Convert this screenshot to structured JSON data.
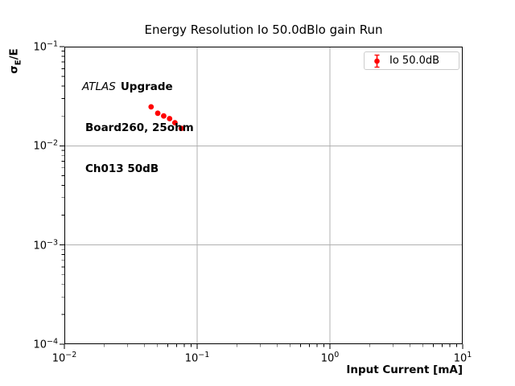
{
  "chart_data": {
    "type": "scatter",
    "title": "Energy Resolution Io 50.0dBlo gain Run",
    "xlabel": "Input Current [mA]",
    "ylabel": "σE/E",
    "x_scale": "log",
    "y_scale": "log",
    "xlim": [
      0.01,
      10
    ],
    "ylim": [
      0.0001,
      0.1
    ],
    "x_tick_exponents": [
      -2,
      -1,
      0,
      1
    ],
    "y_tick_exponents": [
      -1,
      -2,
      -3,
      -4
    ],
    "grid": "major",
    "grid_color": "#b0b0b0",
    "legend_position": "upper right",
    "series": [
      {
        "name": "Io 50.0dB",
        "color": "#ff0000",
        "marker": "circle-errorbar",
        "x": [
          0.045,
          0.0505,
          0.056,
          0.062,
          0.068,
          0.076
        ],
        "y": [
          0.0247,
          0.0213,
          0.02,
          0.0188,
          0.0171,
          0.015
        ]
      }
    ]
  },
  "labels": {
    "ylabel_sigma": "σ",
    "ylabel_sub": "E",
    "ylabel_rest": "/E"
  },
  "legend": {
    "label": "Io 50.0dB",
    "marker_color": "#ff0000"
  },
  "annotation": {
    "line1_italic": "ATLAS",
    "line1_bold": "Upgrade",
    "line2": "Board260, 25ohm",
    "line3": "Ch013 50dB"
  }
}
